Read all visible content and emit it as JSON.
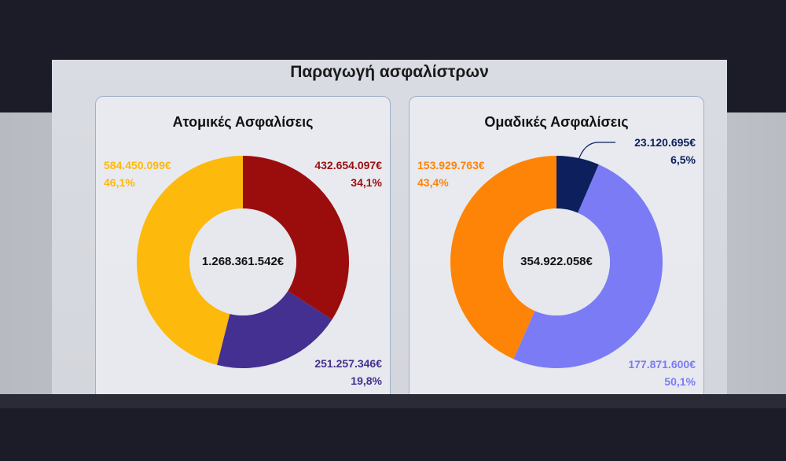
{
  "chart_data": {
    "title": "Παραγωγή ασφαλίστρων",
    "charts": [
      {
        "type": "pie",
        "title": "Ατομικές Ασφαλίσεις",
        "total_label": "1.268.361.542€",
        "slices": [
          {
            "value_label": "432.654.097€",
            "pct_label": "34,1%",
            "value": 432654097,
            "pct": 34.1,
            "color": "#9b0d0d"
          },
          {
            "value_label": "251.257.346€",
            "pct_label": "19,8%",
            "value": 251257346,
            "pct": 19.8,
            "color": "#443090"
          },
          {
            "value_label": "584.450.099€",
            "pct_label": "46,1%",
            "value": 584450099,
            "pct": 46.1,
            "color": "#fdb90c"
          }
        ]
      },
      {
        "type": "pie",
        "title": "Ομαδικές Ασφαλίσεις",
        "total_label": "354.922.058€",
        "slices": [
          {
            "value_label": "23.120.695€",
            "pct_label": "6,5%",
            "value": 23120695,
            "pct": 6.5,
            "color": "#0d1f5c"
          },
          {
            "value_label": "177.871.600€",
            "pct_label": "50,1%",
            "value": 177871600,
            "pct": 50.1,
            "color": "#7b7cf5"
          },
          {
            "value_label": "153.929.763€",
            "pct_label": "43,4%",
            "value": 153929763,
            "pct": 43.4,
            "color": "#fd8407"
          }
        ]
      }
    ]
  }
}
